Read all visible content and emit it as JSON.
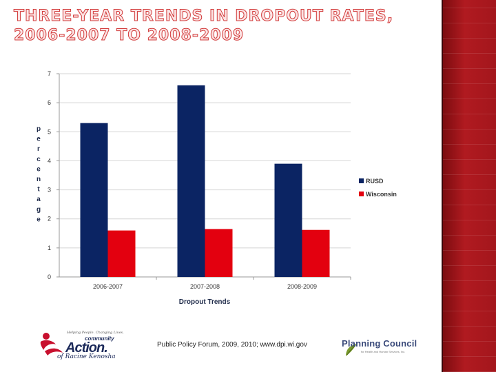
{
  "slide": {
    "title": "Three-Year Trends in Dropout Rates, 2006-2007 to 2008-2009",
    "footer_source": "Public Policy Forum, 2009, 2010; www.dpi.wi.gov"
  },
  "logos": {
    "left_tagline": "Helping People. Changing Lives.",
    "left_community": "community",
    "left_action": "Action.",
    "left_sub": "of Racine Kenosha",
    "right_name": "Planning Council",
    "right_sub": "for Health and Human Services, Inc."
  },
  "colors": {
    "rusd": "#0b2463",
    "wisconsin": "#e3000f",
    "grid": "#d4d4d4",
    "title_outline": "#d23a3a"
  },
  "chart_data": {
    "type": "bar",
    "categories": [
      "2006-2007",
      "2007-2008",
      "2008-2009"
    ],
    "series": [
      {
        "name": "RUSD",
        "values": [
          5.3,
          6.6,
          3.9
        ]
      },
      {
        "name": "Wisconsin",
        "values": [
          1.6,
          1.65,
          1.62
        ]
      }
    ],
    "title": "",
    "xlabel": "Dropout Trends",
    "ylabel": "percentage",
    "ylim": [
      0,
      7
    ],
    "yticks": [
      0,
      1,
      2,
      3,
      4,
      5,
      6,
      7
    ],
    "grid": true,
    "legend": "right"
  }
}
